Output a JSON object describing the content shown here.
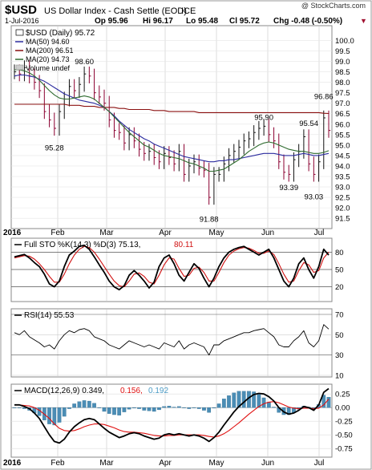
{
  "header": {
    "symbol": "$USD",
    "description": "US Dollar Index - Cash Settle (EOD)",
    "exchange": "ICE",
    "copyright": "@ StockCharts.com",
    "date": "1-Jul-2016",
    "open": "Op 95.96",
    "high": "Hi 96.17",
    "low": "Lo 95.48",
    "close": "Cl 95.72",
    "change": "Chg -0.48 (-0.50%)",
    "change_arrow": "▼"
  },
  "colors": {
    "price": "#000000",
    "ma50": "#2b2b9e",
    "ma200": "#8b1010",
    "ma20": "#2f6b2f",
    "bars": "#8b0030",
    "k": "#000000",
    "d": "#d01010",
    "hist": "#4b8db5",
    "signal": "#e01010",
    "signal_value": "#e01010",
    "hist_value": "#4b9bc5",
    "accent": "#a01030",
    "grid": "#c8c8c8"
  },
  "legend": {
    "price": "$USD (Daily) 95.72",
    "ma50": "MA(50) 94.60",
    "ma200": "MA(200) 96.51",
    "ma20": "MA(20) 94.73",
    "volume": "Volume undef"
  },
  "panels": {
    "sto": {
      "label": "Full STO %K(14,3) %D(3) 75.13,",
      "d_value": "80.11"
    },
    "rsi": {
      "label": "RSI(14) 55.53"
    },
    "macd": {
      "label": "MACD(12,26,9) 0.349,",
      "signal_value": "0.156,",
      "hist_value": "0.192"
    }
  },
  "x_labels": {
    "year_start": "2016",
    "months": [
      "Feb",
      "Mar",
      "Apr",
      "May",
      "Jun",
      "Jul"
    ],
    "year_end": "2016"
  },
  "chart_data": [
    {
      "type": "line",
      "title": "$USD US Dollar Index - Cash Settle (EOD) ICE",
      "ylim": [
        91.2,
        100.4
      ],
      "y_ticks": [
        "100.0",
        "99.5",
        "99.0",
        "98.5",
        "98.0",
        "97.5",
        "97.0",
        "96.5",
        "96.0",
        "95.5",
        "95.0",
        "94.5",
        "94.0",
        "93.5",
        "93.0",
        "92.5",
        "92.0",
        "91.5"
      ],
      "annotations": [
        "98.60",
        "95.28",
        "91.88",
        "95.90",
        "95.54",
        "96.86",
        "93.39",
        "93.03"
      ],
      "x": [
        0,
        2,
        4,
        6,
        8,
        10,
        12,
        14,
        16,
        18,
        20,
        22,
        24,
        26,
        28,
        30,
        32,
        34,
        36,
        38,
        40,
        42,
        44,
        46,
        48,
        50,
        52,
        54,
        56,
        58,
        60,
        62,
        64,
        66,
        68,
        70,
        72,
        74,
        76,
        78,
        80,
        82,
        84,
        86,
        88,
        90,
        92,
        94,
        96,
        98,
        100,
        102,
        104,
        106,
        108,
        110,
        112,
        114,
        116,
        118,
        120,
        122,
        124,
        126
      ],
      "series": [
        {
          "name": "$USD (Daily)",
          "values": [
            98.5,
            98.4,
            98.7,
            98.3,
            98.0,
            97.6,
            96.6,
            96.2,
            95.8,
            96.6,
            97.2,
            97.8,
            97.6,
            97.9,
            98.4,
            98.3,
            97.5,
            97.3,
            97.0,
            96.2,
            95.7,
            95.6,
            95.1,
            95.5,
            95.2,
            94.8,
            94.6,
            94.7,
            94.4,
            94.2,
            94.6,
            94.4,
            94.1,
            94.7,
            93.6,
            94.0,
            94.2,
            93.9,
            93.8,
            92.5,
            93.6,
            93.6,
            94.1,
            94.5,
            94.7,
            94.9,
            95.2,
            95.3,
            95.6,
            95.8,
            95.9,
            95.5,
            95.2,
            94.2,
            93.7,
            93.6,
            94.3,
            94.7,
            95.4,
            94.1,
            93.6,
            94.2,
            96.3,
            95.7
          ]
        },
        {
          "name": "MA(50)",
          "values": [
            98.3,
            98.35,
            98.35,
            98.3,
            98.25,
            98.15,
            98.05,
            97.9,
            97.75,
            97.6,
            97.45,
            97.35,
            97.25,
            97.15,
            97.1,
            97.05,
            97.0,
            96.9,
            96.8,
            96.6,
            96.4,
            96.15,
            95.95,
            95.75,
            95.6,
            95.45,
            95.3,
            95.2,
            95.05,
            94.95,
            94.85,
            94.75,
            94.65,
            94.55,
            94.45,
            94.4,
            94.35,
            94.3,
            94.25,
            94.2,
            94.2,
            94.25,
            94.25,
            94.3,
            94.3,
            94.35,
            94.4,
            94.45,
            94.5,
            94.55,
            94.6,
            94.6,
            94.6,
            94.55,
            94.5,
            94.5,
            94.5,
            94.55,
            94.6,
            94.55,
            94.5,
            94.5,
            94.55,
            94.6
          ]
        },
        {
          "name": "MA(200)",
          "values": [
            96.95,
            96.95,
            96.95,
            96.95,
            96.95,
            96.95,
            96.95,
            96.95,
            96.95,
            96.95,
            96.95,
            96.9,
            96.9,
            96.9,
            96.85,
            96.85,
            96.85,
            96.8,
            96.8,
            96.8,
            96.8,
            96.75,
            96.75,
            96.7,
            96.7,
            96.7,
            96.7,
            96.7,
            96.65,
            96.65,
            96.65,
            96.6,
            96.6,
            96.6,
            96.6,
            96.6,
            96.6,
            96.55,
            96.55,
            96.55,
            96.55,
            96.55,
            96.55,
            96.55,
            96.55,
            96.55,
            96.55,
            96.55,
            96.55,
            96.55,
            96.55,
            96.55,
            96.55,
            96.55,
            96.55,
            96.55,
            96.55,
            96.55,
            96.55,
            96.55,
            96.55,
            96.55,
            96.52,
            96.51
          ]
        },
        {
          "name": "MA(20)",
          "values": [
            98.6,
            98.6,
            98.55,
            98.45,
            98.3,
            98.1,
            97.85,
            97.6,
            97.4,
            97.25,
            97.2,
            97.2,
            97.25,
            97.3,
            97.35,
            97.3,
            97.2,
            97.0,
            96.8,
            96.6,
            96.35,
            96.1,
            95.85,
            95.6,
            95.4,
            95.2,
            95.0,
            94.9,
            94.75,
            94.6,
            94.5,
            94.45,
            94.4,
            94.35,
            94.25,
            94.15,
            94.1,
            94.0,
            93.9,
            93.75,
            93.75,
            93.8,
            93.85,
            94.0,
            94.15,
            94.3,
            94.5,
            94.7,
            94.85,
            95.0,
            95.1,
            95.15,
            95.1,
            95.0,
            94.9,
            94.8,
            94.75,
            94.7,
            94.7,
            94.65,
            94.6,
            94.6,
            94.65,
            94.73
          ]
        }
      ]
    },
    {
      "type": "line",
      "title": "Full STO %K(14,3) %D(3)",
      "ylim": [
        0,
        100
      ],
      "y_ticks": [
        "80",
        "50",
        "20"
      ],
      "x": [
        0,
        2,
        4,
        6,
        8,
        10,
        12,
        14,
        16,
        18,
        20,
        22,
        24,
        26,
        28,
        30,
        32,
        34,
        36,
        38,
        40,
        42,
        44,
        46,
        48,
        50,
        52,
        54,
        56,
        58,
        60,
        62,
        64,
        66,
        68,
        70,
        72,
        74,
        76,
        78,
        80,
        82,
        84,
        86,
        88,
        90,
        92,
        94,
        96,
        98,
        100,
        102,
        104,
        106,
        108,
        110,
        112,
        114,
        116,
        118,
        120,
        122,
        124,
        126
      ],
      "series": [
        {
          "name": "%K",
          "values": [
            72,
            74,
            76,
            70,
            62,
            55,
            42,
            25,
            20,
            30,
            55,
            75,
            82,
            90,
            92,
            85,
            72,
            58,
            45,
            30,
            20,
            15,
            22,
            40,
            48,
            40,
            30,
            18,
            28,
            55,
            70,
            75,
            60,
            40,
            30,
            45,
            60,
            52,
            35,
            20,
            35,
            55,
            70,
            80,
            85,
            88,
            90,
            85,
            80,
            75,
            80,
            85,
            70,
            50,
            30,
            20,
            35,
            60,
            70,
            50,
            35,
            55,
            85,
            75
          ]
        },
        {
          "name": "%D",
          "values": [
            70,
            72,
            74,
            73,
            68,
            60,
            50,
            38,
            28,
            28,
            42,
            60,
            75,
            85,
            90,
            88,
            80,
            68,
            55,
            42,
            30,
            22,
            20,
            30,
            42,
            44,
            38,
            28,
            25,
            40,
            58,
            70,
            68,
            52,
            38,
            40,
            52,
            54,
            45,
            30,
            30,
            45,
            62,
            75,
            82,
            86,
            88,
            87,
            83,
            78,
            78,
            82,
            76,
            60,
            42,
            28,
            30,
            48,
            62,
            58,
            45,
            48,
            70,
            80
          ]
        }
      ]
    },
    {
      "type": "line",
      "title": "RSI(14)",
      "ylim": [
        10,
        70
      ],
      "y_ticks": [
        "70",
        "50",
        "30",
        "10"
      ],
      "x": [
        0,
        2,
        4,
        6,
        8,
        10,
        12,
        14,
        16,
        18,
        20,
        22,
        24,
        26,
        28,
        30,
        32,
        34,
        36,
        38,
        40,
        42,
        44,
        46,
        48,
        50,
        52,
        54,
        56,
        58,
        60,
        62,
        64,
        66,
        68,
        70,
        72,
        74,
        76,
        78,
        80,
        82,
        84,
        86,
        88,
        90,
        92,
        94,
        96,
        98,
        100,
        102,
        104,
        106,
        108,
        110,
        112,
        114,
        116,
        118,
        120,
        122,
        124,
        126
      ],
      "series": [
        {
          "name": "RSI(14)",
          "values": [
            52,
            50,
            54,
            48,
            45,
            42,
            38,
            40,
            36,
            44,
            50,
            54,
            52,
            55,
            56,
            54,
            48,
            46,
            44,
            40,
            38,
            36,
            40,
            44,
            42,
            40,
            38,
            40,
            38,
            36,
            42,
            40,
            38,
            44,
            36,
            40,
            42,
            40,
            38,
            30,
            40,
            40,
            44,
            46,
            48,
            50,
            52,
            52,
            54,
            55,
            56,
            52,
            48,
            40,
            38,
            38,
            44,
            48,
            54,
            42,
            38,
            44,
            60,
            55.53
          ]
        }
      ]
    },
    {
      "type": "line",
      "title": "MACD(12,26,9)",
      "ylim": [
        -0.85,
        0.4
      ],
      "y_ticks": [
        "0.25",
        "0.00",
        "-0.25",
        "-0.50",
        "-0.75"
      ],
      "x": [
        0,
        2,
        4,
        6,
        8,
        10,
        12,
        14,
        16,
        18,
        20,
        22,
        24,
        26,
        28,
        30,
        32,
        34,
        36,
        38,
        40,
        42,
        44,
        46,
        48,
        50,
        52,
        54,
        56,
        58,
        60,
        62,
        64,
        66,
        68,
        70,
        72,
        74,
        76,
        78,
        80,
        82,
        84,
        86,
        88,
        90,
        92,
        94,
        96,
        98,
        100,
        102,
        104,
        106,
        108,
        110,
        112,
        114,
        116,
        118,
        120,
        122,
        124,
        126
      ],
      "series": [
        {
          "name": "MACD",
          "values": [
            0.05,
            0.05,
            0.02,
            -0.02,
            -0.1,
            -0.2,
            -0.35,
            -0.5,
            -0.62,
            -0.65,
            -0.58,
            -0.45,
            -0.35,
            -0.28,
            -0.22,
            -0.2,
            -0.22,
            -0.3,
            -0.38,
            -0.45,
            -0.5,
            -0.55,
            -0.52,
            -0.48,
            -0.46,
            -0.48,
            -0.52,
            -0.55,
            -0.58,
            -0.56,
            -0.5,
            -0.48,
            -0.5,
            -0.48,
            -0.5,
            -0.52,
            -0.5,
            -0.52,
            -0.56,
            -0.62,
            -0.55,
            -0.45,
            -0.32,
            -0.2,
            -0.08,
            0.02,
            0.1,
            0.18,
            0.24,
            0.26,
            0.25,
            0.2,
            0.12,
            0.0,
            -0.08,
            -0.12,
            -0.1,
            -0.05,
            0.02,
            0.0,
            -0.05,
            0.05,
            0.28,
            0.349
          ]
        },
        {
          "name": "Signal",
          "values": [
            0.05,
            0.05,
            0.04,
            0.03,
            0.0,
            -0.05,
            -0.12,
            -0.2,
            -0.3,
            -0.38,
            -0.42,
            -0.43,
            -0.42,
            -0.39,
            -0.35,
            -0.32,
            -0.3,
            -0.3,
            -0.31,
            -0.34,
            -0.37,
            -0.41,
            -0.44,
            -0.45,
            -0.45,
            -0.46,
            -0.47,
            -0.49,
            -0.51,
            -0.52,
            -0.52,
            -0.51,
            -0.51,
            -0.5,
            -0.5,
            -0.5,
            -0.5,
            -0.5,
            -0.51,
            -0.53,
            -0.54,
            -0.52,
            -0.48,
            -0.42,
            -0.35,
            -0.28,
            -0.2,
            -0.12,
            -0.05,
            0.02,
            0.07,
            0.1,
            0.11,
            0.09,
            0.05,
            0.01,
            -0.01,
            -0.02,
            -0.01,
            -0.01,
            -0.02,
            -0.01,
            0.05,
            0.156
          ]
        },
        {
          "name": "Histogram",
          "values": [
            0.0,
            0.0,
            -0.02,
            -0.05,
            -0.1,
            -0.15,
            -0.23,
            -0.3,
            -0.32,
            -0.27,
            -0.16,
            -0.02,
            0.07,
            0.11,
            0.13,
            0.12,
            0.08,
            0.0,
            -0.07,
            -0.11,
            -0.13,
            -0.14,
            -0.08,
            -0.03,
            -0.01,
            -0.02,
            -0.05,
            -0.06,
            -0.07,
            -0.04,
            0.02,
            0.03,
            0.01,
            0.02,
            0.0,
            -0.02,
            0.0,
            -0.02,
            -0.05,
            -0.09,
            -0.01,
            0.07,
            0.16,
            0.22,
            0.27,
            0.3,
            0.3,
            0.3,
            0.29,
            0.24,
            0.18,
            0.1,
            0.01,
            -0.09,
            -0.13,
            -0.13,
            -0.09,
            -0.03,
            0.03,
            0.01,
            -0.03,
            0.06,
            0.23,
            0.192
          ]
        }
      ]
    }
  ]
}
